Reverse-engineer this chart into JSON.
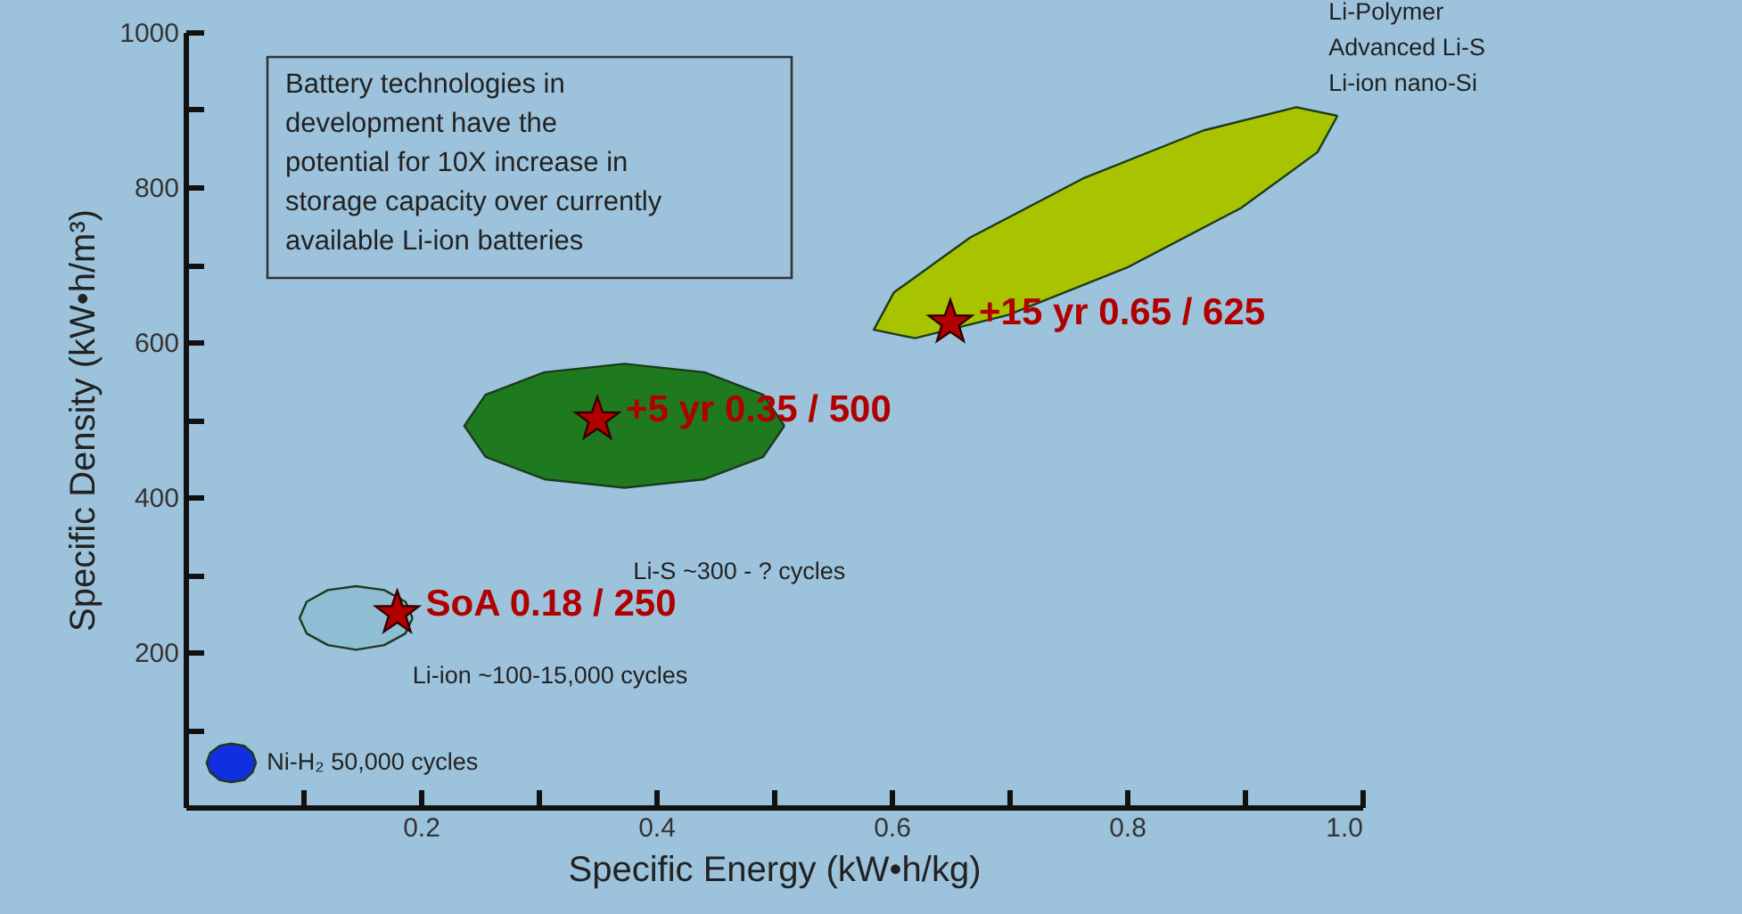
{
  "chart_data": {
    "type": "scatter",
    "xlabel": "Specific Energy (kW•h/kg)",
    "ylabel": "Specific Density (kW•h/m³)",
    "xlim": [
      0,
      1.0
    ],
    "ylim": [
      0,
      1000
    ],
    "xticks": [
      {
        "value": 0.1,
        "label": null
      },
      0.2,
      {
        "value": 0.3,
        "label": null
      },
      0.4,
      {
        "value": 0.5,
        "label": null
      },
      0.6,
      {
        "value": 0.7,
        "label": null
      },
      0.8,
      {
        "value": 0.9,
        "label": null
      },
      {
        "value": 1,
        "label": "1.0"
      }
    ],
    "yticks": [
      {
        "value": 100,
        "label": null
      },
      200,
      {
        "value": 300,
        "label": null
      },
      400,
      {
        "value": 500,
        "label": null
      },
      600,
      {
        "value": 700,
        "label": null
      },
      800,
      {
        "value": 900,
        "label": null
      },
      1000
    ],
    "series": [
      {
        "type": "area",
        "name": "Ni-H₂ 50,000 cycles",
        "color": "#1030e0",
        "x": [
          0.06,
          0.057,
          0.05,
          0.039,
          0.029,
          0.021,
          0.018,
          0.021,
          0.029,
          0.039,
          0.05,
          0.057,
          0.06
        ],
        "values": [
          57,
          70,
          79,
          82,
          79,
          70,
          57,
          45,
          35,
          32,
          35,
          45,
          57
        ]
      },
      {
        "type": "area",
        "name": "Li-ion ~100-15,000 cycles",
        "color": "#8fbdd3",
        "x": [
          0.193,
          0.187,
          0.169,
          0.145,
          0.121,
          0.103,
          0.097,
          0.103,
          0.121,
          0.145,
          0.169,
          0.187,
          0.193
        ],
        "values": [
          244,
          265,
          280,
          285,
          280,
          265,
          244,
          224,
          209,
          203,
          209,
          224,
          244
        ]
      },
      {
        "type": "area",
        "name": "Li-S ~300 - ? cycles",
        "color": "#1f7a1f",
        "x": [
          0.509,
          0.491,
          0.441,
          0.373,
          0.305,
          0.255,
          0.237,
          0.255,
          0.305,
          0.373,
          0.441,
          0.491,
          0.509
        ],
        "values": [
          492,
          532,
          561,
          572,
          561,
          532,
          492,
          452,
          423,
          412,
          423,
          452,
          492
        ]
      },
      {
        "type": "area",
        "name": "Li-Polymer\n   Advanced Li-S\n      Li-ion nano-Si",
        "color": "#a8c400",
        "x": [
          0.979,
          0.944,
          0.865,
          0.764,
          0.667,
          0.602,
          0.585,
          0.62,
          0.699,
          0.8,
          0.897,
          0.962,
          0.979
        ],
        "values": [
          892,
          903,
          873,
          812,
          735,
          664,
          616,
          605,
          635,
          696,
          773,
          845,
          892
        ]
      },
      {
        "marker": "star",
        "color": "#b00000",
        "x": [
          0.18,
          0.35,
          0.65
        ],
        "values": [
          250,
          500,
          625
        ],
        "value_labels": [
          "SoA 0.18 / 250",
          "+5 yr  0.35 / 500",
          "+15 yr  0.65 / 625"
        ]
      }
    ],
    "annotations": [
      "Battery technologies in\ndevelopment have the\npotential for 10X increase in\nstorage capacity over currently\navailable Li-ion batteries"
    ]
  }
}
